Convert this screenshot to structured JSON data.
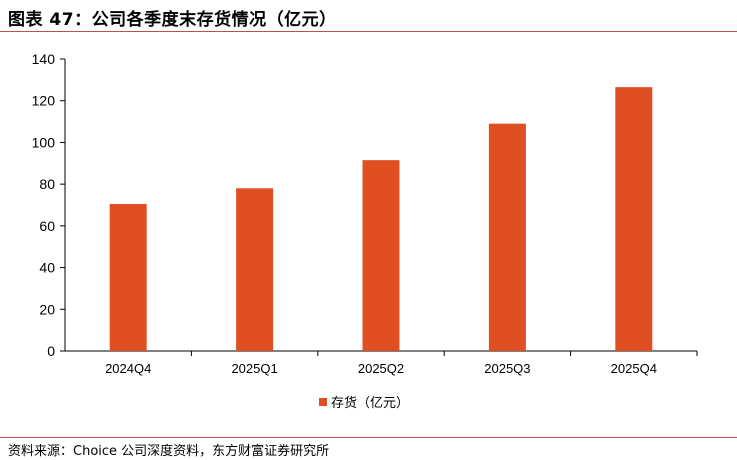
{
  "figure": {
    "title": "图表 47：公司各季度末存货情况（亿元）",
    "source": "资料来源：Choice 公司深度资料，东方财富证券研究所"
  },
  "colors": {
    "bar": "#e04f22",
    "rule": "#c0504d",
    "axis": "#000000"
  },
  "chart_data": {
    "type": "bar",
    "categories": [
      "2024Q4",
      "2025Q1",
      "2025Q2",
      "2025Q3",
      "2025Q4"
    ],
    "series": [
      {
        "name": "存货（亿元）",
        "values": [
          70.5,
          78,
          91.5,
          109,
          126.5
        ]
      }
    ],
    "ylim": [
      0,
      140
    ],
    "yticks": [
      0,
      20,
      40,
      60,
      80,
      100,
      120,
      140
    ],
    "grid": false,
    "legend": "bottom"
  }
}
